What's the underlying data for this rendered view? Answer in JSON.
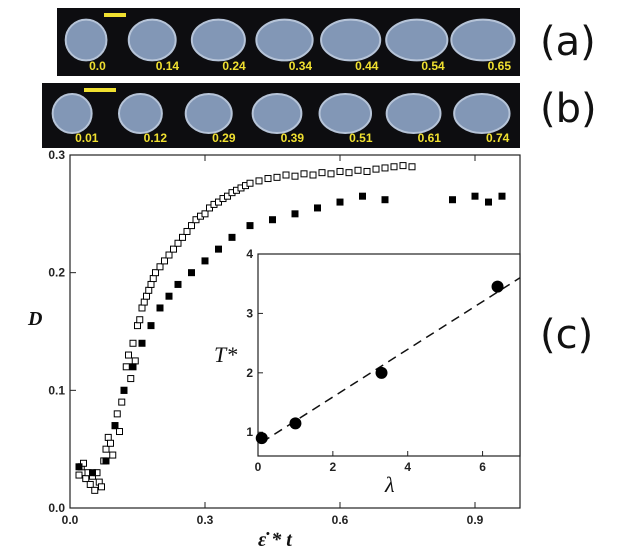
{
  "panels": [
    {
      "label": "(a)",
      "frame_labels": [
        "0.0",
        "0.14",
        "0.24",
        "0.34",
        "0.44",
        "0.54",
        "0.65"
      ],
      "frame_aspect": [
        1.0,
        1.15,
        1.3,
        1.38,
        1.45,
        1.5,
        1.55
      ]
    },
    {
      "label": "(b)",
      "frame_labels": [
        "0.01",
        "0.12",
        "0.29",
        "0.39",
        "0.51",
        "0.61",
        "0.74"
      ],
      "frame_aspect": [
        1.0,
        1.1,
        1.18,
        1.25,
        1.32,
        1.38,
        1.42
      ]
    },
    {
      "label": "(c)"
    }
  ],
  "colors": {
    "strip_bg": "#0d0d10",
    "blob": "#8fa6c8",
    "scale_bar": "#f0e030",
    "label": "#f0e030"
  },
  "chart_data": [
    {
      "type": "scatter",
      "xlabel": "ε̇ * t",
      "ylabel": "D",
      "xlim": [
        0.0,
        1.0
      ],
      "ylim": [
        0.0,
        0.3
      ],
      "xticks": [
        0.0,
        0.3,
        0.6,
        0.9
      ],
      "xtick_labels": [
        "0.0",
        "0.3",
        "0.6",
        "0.9"
      ],
      "yticks": [
        0.0,
        0.1,
        0.2,
        0.3
      ],
      "ytick_labels": [
        "0.0",
        "0.1",
        "0.2",
        "0.3"
      ],
      "series": [
        {
          "marker": "open-square",
          "points": [
            [
              0.02,
              0.028
            ],
            [
              0.025,
              0.035
            ],
            [
              0.03,
              0.038
            ],
            [
              0.035,
              0.025
            ],
            [
              0.04,
              0.03
            ],
            [
              0.045,
              0.02
            ],
            [
              0.05,
              0.027
            ],
            [
              0.055,
              0.015
            ],
            [
              0.06,
              0.03
            ],
            [
              0.065,
              0.022
            ],
            [
              0.07,
              0.018
            ],
            [
              0.075,
              0.04
            ],
            [
              0.08,
              0.05
            ],
            [
              0.085,
              0.06
            ],
            [
              0.09,
              0.055
            ],
            [
              0.095,
              0.045
            ],
            [
              0.1,
              0.07
            ],
            [
              0.105,
              0.08
            ],
            [
              0.11,
              0.065
            ],
            [
              0.115,
              0.09
            ],
            [
              0.12,
              0.1
            ],
            [
              0.125,
              0.12
            ],
            [
              0.13,
              0.13
            ],
            [
              0.135,
              0.11
            ],
            [
              0.14,
              0.14
            ],
            [
              0.145,
              0.125
            ],
            [
              0.15,
              0.155
            ],
            [
              0.155,
              0.16
            ],
            [
              0.16,
              0.17
            ],
            [
              0.165,
              0.175
            ],
            [
              0.17,
              0.18
            ],
            [
              0.175,
              0.185
            ],
            [
              0.18,
              0.19
            ],
            [
              0.185,
              0.195
            ],
            [
              0.19,
              0.2
            ],
            [
              0.2,
              0.205
            ],
            [
              0.21,
              0.21
            ],
            [
              0.22,
              0.215
            ],
            [
              0.23,
              0.22
            ],
            [
              0.24,
              0.225
            ],
            [
              0.25,
              0.23
            ],
            [
              0.26,
              0.235
            ],
            [
              0.27,
              0.24
            ],
            [
              0.28,
              0.245
            ],
            [
              0.29,
              0.248
            ],
            [
              0.3,
              0.25
            ],
            [
              0.31,
              0.255
            ],
            [
              0.32,
              0.258
            ],
            [
              0.33,
              0.26
            ],
            [
              0.34,
              0.263
            ],
            [
              0.35,
              0.265
            ],
            [
              0.36,
              0.268
            ],
            [
              0.37,
              0.27
            ],
            [
              0.38,
              0.272
            ],
            [
              0.39,
              0.274
            ],
            [
              0.4,
              0.276
            ],
            [
              0.42,
              0.278
            ],
            [
              0.44,
              0.28
            ],
            [
              0.46,
              0.281
            ],
            [
              0.48,
              0.283
            ],
            [
              0.5,
              0.282
            ],
            [
              0.52,
              0.284
            ],
            [
              0.54,
              0.283
            ],
            [
              0.56,
              0.285
            ],
            [
              0.58,
              0.284
            ],
            [
              0.6,
              0.286
            ],
            [
              0.62,
              0.285
            ],
            [
              0.64,
              0.287
            ],
            [
              0.66,
              0.286
            ],
            [
              0.68,
              0.288
            ],
            [
              0.7,
              0.289
            ],
            [
              0.72,
              0.29
            ],
            [
              0.74,
              0.291
            ],
            [
              0.76,
              0.29
            ]
          ]
        },
        {
          "marker": "filled-square",
          "points": [
            [
              0.02,
              0.035
            ],
            [
              0.05,
              0.03
            ],
            [
              0.08,
              0.04
            ],
            [
              0.1,
              0.07
            ],
            [
              0.12,
              0.1
            ],
            [
              0.14,
              0.12
            ],
            [
              0.16,
              0.14
            ],
            [
              0.18,
              0.155
            ],
            [
              0.2,
              0.17
            ],
            [
              0.22,
              0.18
            ],
            [
              0.24,
              0.19
            ],
            [
              0.27,
              0.2
            ],
            [
              0.3,
              0.21
            ],
            [
              0.33,
              0.22
            ],
            [
              0.36,
              0.23
            ],
            [
              0.4,
              0.24
            ],
            [
              0.45,
              0.245
            ],
            [
              0.5,
              0.25
            ],
            [
              0.55,
              0.255
            ],
            [
              0.6,
              0.26
            ],
            [
              0.65,
              0.265
            ],
            [
              0.7,
              0.262
            ],
            [
              0.85,
              0.262
            ],
            [
              0.9,
              0.265
            ],
            [
              0.93,
              0.26
            ],
            [
              0.96,
              0.265
            ]
          ]
        }
      ]
    },
    {
      "type": "scatter",
      "inset": true,
      "xlabel": "λ",
      "ylabel": "T*",
      "xlim": [
        0,
        7
      ],
      "ylim": [
        0.6,
        4
      ],
      "xticks": [
        0,
        2,
        4,
        6
      ],
      "xtick_labels": [
        "0",
        "2",
        "4",
        "6"
      ],
      "yticks": [
        1,
        2,
        3,
        4
      ],
      "ytick_labels": [
        "1",
        "2",
        "3",
        "4"
      ],
      "points": [
        [
          0.1,
          0.9
        ],
        [
          1.0,
          1.15
        ],
        [
          3.3,
          2.0
        ],
        [
          6.4,
          3.45
        ]
      ],
      "fit_line": {
        "x": [
          0.1,
          7.0
        ],
        "y": [
          0.83,
          3.6
        ],
        "style": "dashed"
      }
    }
  ]
}
